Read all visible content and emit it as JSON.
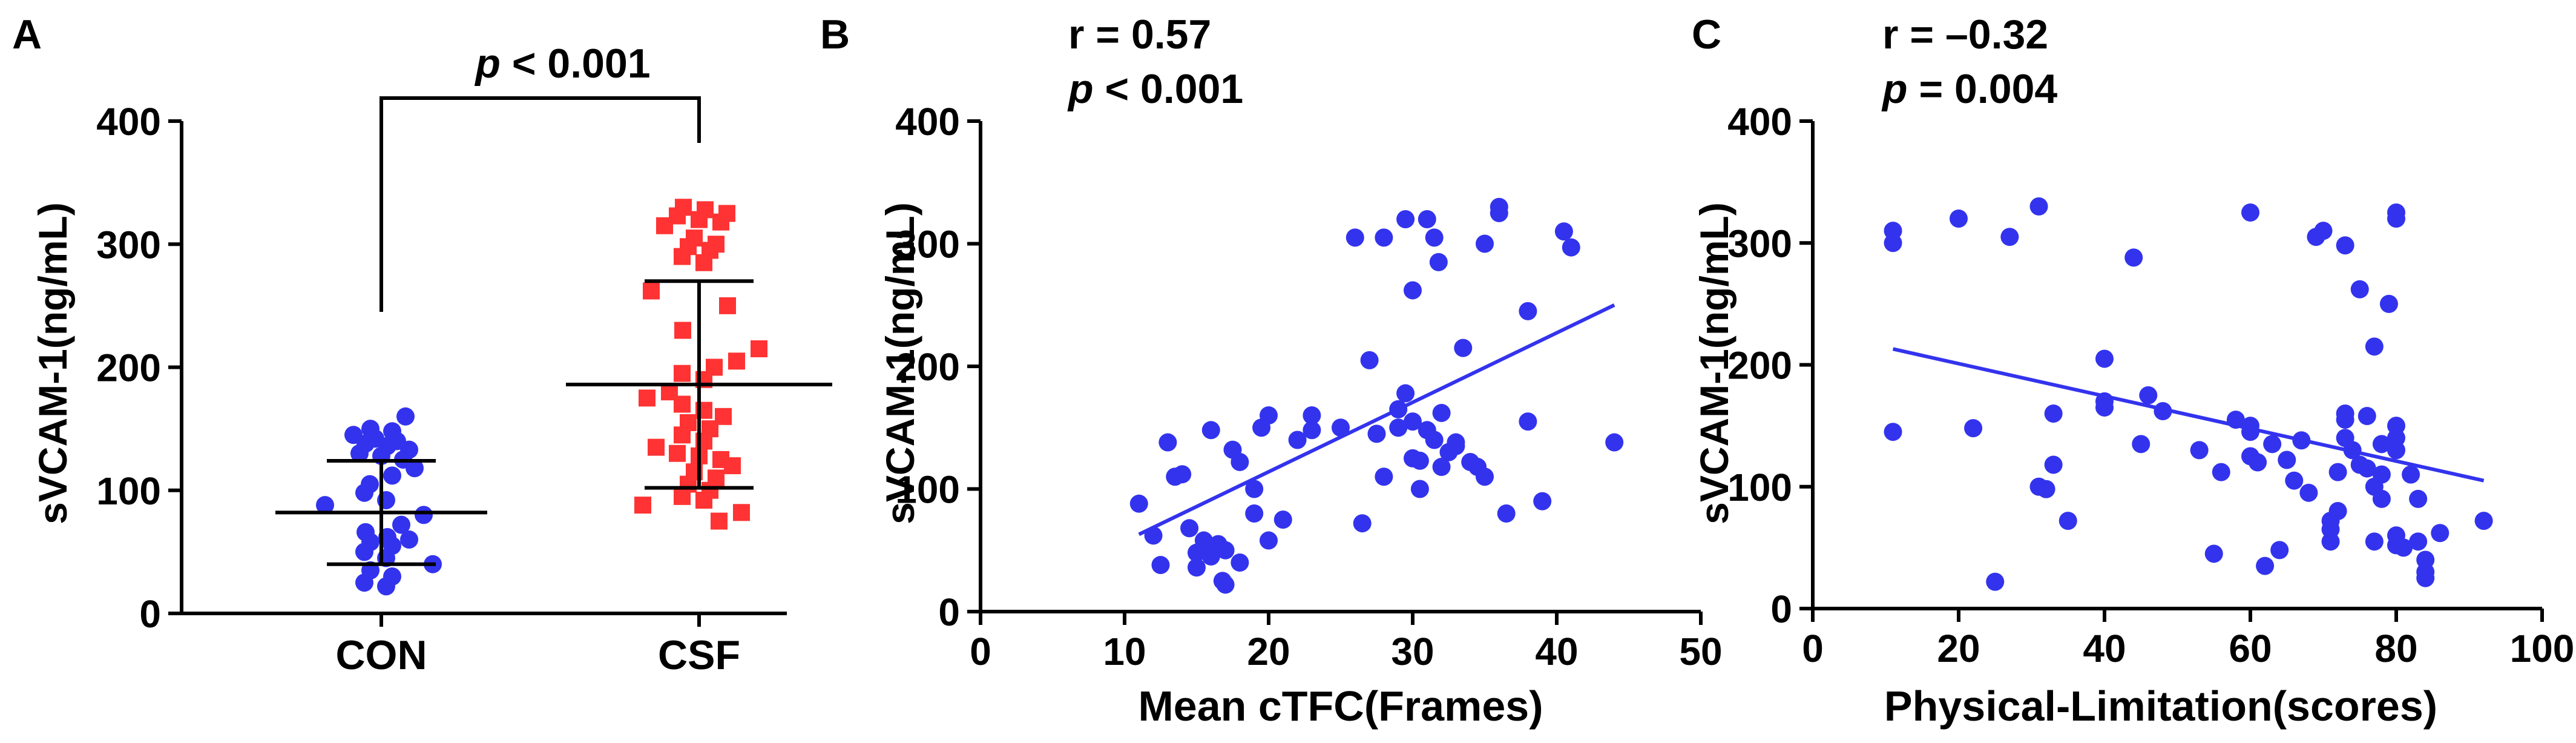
{
  "chart_data": [
    {
      "panel": "A",
      "type": "scatter",
      "ylabel": "sVCAM-1(ng/mL)",
      "ylim": [
        0,
        400
      ],
      "yticks": [
        "0",
        "100",
        "200",
        "300",
        "400"
      ],
      "categories": [
        "CON",
        "CSF"
      ],
      "significance": {
        "prefix": "p",
        "text": " < 0.001"
      },
      "colors": {
        "CON": "#3333ee",
        "CSF": "#ff3333"
      },
      "groups": [
        {
          "name": "CON",
          "mean": 82,
          "sd_low": 40,
          "sd_high": 124,
          "values": [
            160,
            150,
            148,
            145,
            142,
            140,
            138,
            136,
            133,
            130,
            128,
            125,
            118,
            112,
            105,
            98,
            92,
            88,
            80,
            72,
            66,
            62,
            60,
            58,
            55,
            50,
            45,
            40,
            35,
            30,
            25,
            22
          ]
        },
        {
          "name": "CSF",
          "mean": 186,
          "sd_low": 102,
          "sd_high": 270,
          "values": [
            330,
            328,
            325,
            323,
            320,
            318,
            315,
            305,
            300,
            298,
            295,
            290,
            285,
            262,
            250,
            230,
            215,
            205,
            200,
            195,
            190,
            180,
            175,
            170,
            165,
            160,
            155,
            150,
            145,
            140,
            135,
            130,
            128,
            125,
            120,
            115,
            110,
            105,
            100,
            95,
            92,
            88,
            82,
            75
          ]
        }
      ]
    },
    {
      "panel": "B",
      "type": "scatter",
      "stats": {
        "r": "r = 0.57",
        "p_prefix": "p",
        "p_text": " < 0.001"
      },
      "xlabel": "Mean cTFC(Frames)",
      "ylabel": "sVCAM-1(ng/mL)",
      "xlim": [
        0,
        50
      ],
      "ylim": [
        0,
        400
      ],
      "xticks": [
        "0",
        "10",
        "20",
        "30",
        "40",
        "50"
      ],
      "yticks": [
        "0",
        "100",
        "200",
        "300",
        "400"
      ],
      "color": "#3333ee",
      "fit": {
        "x": [
          11,
          44
        ],
        "y": [
          63,
          250
        ]
      },
      "points": [
        [
          11,
          88
        ],
        [
          12,
          62
        ],
        [
          12.5,
          38
        ],
        [
          13,
          138
        ],
        [
          13.5,
          110
        ],
        [
          14,
          112
        ],
        [
          14.5,
          68
        ],
        [
          15,
          48
        ],
        [
          15,
          36
        ],
        [
          15.5,
          58
        ],
        [
          16,
          45
        ],
        [
          16,
          148
        ],
        [
          16.5,
          55
        ],
        [
          16.8,
          25
        ],
        [
          17,
          50
        ],
        [
          17,
          22
        ],
        [
          17.5,
          132
        ],
        [
          18,
          122
        ],
        [
          18,
          40
        ],
        [
          19,
          100
        ],
        [
          19,
          80
        ],
        [
          19.5,
          150
        ],
        [
          20,
          160
        ],
        [
          20,
          58
        ],
        [
          21,
          75
        ],
        [
          22,
          140
        ],
        [
          23,
          160
        ],
        [
          23,
          148
        ],
        [
          25,
          150
        ],
        [
          26,
          305
        ],
        [
          26.5,
          72
        ],
        [
          27,
          205
        ],
        [
          27.5,
          145
        ],
        [
          28,
          110
        ],
        [
          28,
          305
        ],
        [
          29,
          150
        ],
        [
          29,
          165
        ],
        [
          29.5,
          320
        ],
        [
          29.5,
          178
        ],
        [
          30,
          262
        ],
        [
          30,
          125
        ],
        [
          30,
          155
        ],
        [
          30.5,
          123
        ],
        [
          30.5,
          100
        ],
        [
          31,
          320
        ],
        [
          31,
          148
        ],
        [
          31.5,
          140
        ],
        [
          31.5,
          305
        ],
        [
          31.8,
          285
        ],
        [
          32,
          162
        ],
        [
          32,
          118
        ],
        [
          32.5,
          130
        ],
        [
          33,
          135
        ],
        [
          33,
          138
        ],
        [
          33.5,
          215
        ],
        [
          34,
          122
        ],
        [
          34.5,
          118
        ],
        [
          35,
          300
        ],
        [
          35,
          110
        ],
        [
          36,
          330
        ],
        [
          36,
          325
        ],
        [
          36.5,
          80
        ],
        [
          38,
          245
        ],
        [
          38,
          155
        ],
        [
          39,
          90
        ],
        [
          40.5,
          310
        ],
        [
          41,
          297
        ],
        [
          44,
          138
        ]
      ]
    },
    {
      "panel": "C",
      "type": "scatter",
      "stats": {
        "r": "r = –0.32",
        "p_prefix": "p",
        "p_text": " = 0.004"
      },
      "xlabel": "Physical-Limitation(scores)",
      "ylabel": "sVCAM-1(ng/mL)",
      "xlim": [
        0,
        100
      ],
      "ylim": [
        0,
        400
      ],
      "xticks": [
        "0",
        "20",
        "40",
        "60",
        "80",
        "100"
      ],
      "yticks": [
        "0",
        "100",
        "200",
        "300",
        "400"
      ],
      "color": "#3333ee",
      "fit": {
        "x": [
          11,
          92
        ],
        "y": [
          213,
          105
        ]
      },
      "points": [
        [
          11,
          310
        ],
        [
          11,
          300
        ],
        [
          11,
          145
        ],
        [
          20,
          320
        ],
        [
          22,
          148
        ],
        [
          25,
          22
        ],
        [
          27,
          305
        ],
        [
          31,
          330
        ],
        [
          31,
          100
        ],
        [
          32,
          98
        ],
        [
          33,
          118
        ],
        [
          33,
          160
        ],
        [
          35,
          72
        ],
        [
          40,
          205
        ],
        [
          40,
          170
        ],
        [
          40,
          165
        ],
        [
          44,
          288
        ],
        [
          45,
          135
        ],
        [
          46,
          175
        ],
        [
          48,
          162
        ],
        [
          53,
          130
        ],
        [
          55,
          45
        ],
        [
          56,
          112
        ],
        [
          58,
          155
        ],
        [
          60,
          325
        ],
        [
          60,
          150
        ],
        [
          60,
          145
        ],
        [
          60,
          125
        ],
        [
          61,
          120
        ],
        [
          62,
          35
        ],
        [
          63,
          135
        ],
        [
          64,
          48
        ],
        [
          65,
          122
        ],
        [
          66,
          105
        ],
        [
          67,
          138
        ],
        [
          68,
          95
        ],
        [
          69,
          305
        ],
        [
          70,
          310
        ],
        [
          71,
          55
        ],
        [
          71,
          65
        ],
        [
          71,
          72
        ],
        [
          72,
          80
        ],
        [
          72,
          112
        ],
        [
          73,
          140
        ],
        [
          73,
          155
        ],
        [
          73,
          160
        ],
        [
          73,
          298
        ],
        [
          74,
          130
        ],
        [
          75,
          118
        ],
        [
          75,
          262
        ],
        [
          76,
          115
        ],
        [
          76,
          158
        ],
        [
          77,
          215
        ],
        [
          77,
          100
        ],
        [
          77,
          55
        ],
        [
          78,
          110
        ],
        [
          78,
          90
        ],
        [
          78,
          135
        ],
        [
          79,
          250
        ],
        [
          80,
          325
        ],
        [
          80,
          320
        ],
        [
          80,
          150
        ],
        [
          80,
          140
        ],
        [
          80,
          130
        ],
        [
          80,
          60
        ],
        [
          80,
          52
        ],
        [
          81,
          50
        ],
        [
          82,
          110
        ],
        [
          83,
          90
        ],
        [
          83,
          55
        ],
        [
          84,
          40
        ],
        [
          84,
          30
        ],
        [
          84,
          25
        ],
        [
          86,
          62
        ],
        [
          92,
          72
        ]
      ]
    }
  ]
}
